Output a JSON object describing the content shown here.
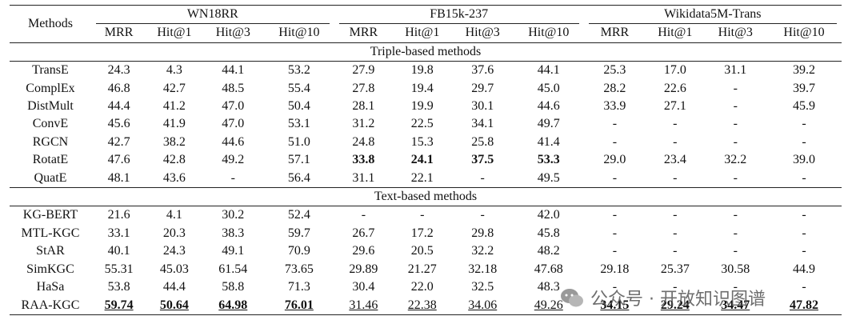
{
  "header": {
    "methods": "Methods",
    "groups": [
      "WN18RR",
      "FB15k-237",
      "Wikidata5M-Trans"
    ],
    "metrics": [
      "MRR",
      "Hit@1",
      "Hit@3",
      "Hit@10",
      "MRR",
      "Hit@1",
      "Hit@3",
      "Hit@10",
      "MRR",
      "Hit@1",
      "Hit@3",
      "Hit@10"
    ]
  },
  "sections": [
    {
      "title": "Triple-based methods",
      "rows": [
        {
          "cells": [
            "TransE",
            "24.3",
            "4.3",
            "44.1",
            "53.2",
            "27.9",
            "19.8",
            "37.6",
            "44.1",
            "25.3",
            "17.0",
            "31.1",
            "39.2"
          ]
        },
        {
          "cells": [
            "ComplEx",
            "46.8",
            "42.7",
            "48.5",
            "55.4",
            "27.8",
            "19.4",
            "29.7",
            "45.0",
            "28.2",
            "22.6",
            "-",
            "39.7"
          ]
        },
        {
          "cells": [
            "DistMult",
            "44.4",
            "41.2",
            "47.0",
            "50.4",
            "28.1",
            "19.9",
            "30.1",
            "44.6",
            "33.9",
            "27.1",
            "-",
            "45.9"
          ]
        },
        {
          "cells": [
            "ConvE",
            "45.6",
            "41.9",
            "47.0",
            "53.1",
            "31.2",
            "22.5",
            "34.1",
            "49.7",
            "-",
            "-",
            "-",
            "-"
          ]
        },
        {
          "cells": [
            "RGCN",
            "42.7",
            "38.2",
            "44.6",
            "51.0",
            "24.8",
            "15.3",
            "25.8",
            "41.4",
            "-",
            "-",
            "-",
            "-"
          ]
        },
        {
          "cells": [
            "RotatE",
            "47.6",
            "42.8",
            "49.2",
            "57.1",
            "33.8",
            "24.1",
            "37.5",
            "53.3",
            "29.0",
            "23.4",
            "32.2",
            "39.0"
          ],
          "bold": [
            5,
            6,
            7,
            8
          ]
        },
        {
          "cells": [
            "QuatE",
            "48.1",
            "43.6",
            "-",
            "56.4",
            "31.1",
            "22.1",
            "-",
            "49.5",
            "-",
            "-",
            "-",
            "-"
          ]
        }
      ]
    },
    {
      "title": "Text-based methods",
      "rows": [
        {
          "cells": [
            "KG-BERT",
            "21.6",
            "4.1",
            "30.2",
            "52.4",
            "-",
            "-",
            "-",
            "42.0",
            "-",
            "-",
            "-",
            "-"
          ]
        },
        {
          "cells": [
            "MTL-KGC",
            "33.1",
            "20.3",
            "38.3",
            "59.7",
            "26.7",
            "17.2",
            "29.8",
            "45.8",
            "-",
            "-",
            "-",
            "-"
          ]
        },
        {
          "cells": [
            "StAR",
            "40.1",
            "24.3",
            "49.1",
            "70.9",
            "29.6",
            "20.5",
            "32.2",
            "48.2",
            "-",
            "-",
            "-",
            "-"
          ]
        },
        {
          "cells": [
            "SimKGC",
            "55.31",
            "45.03",
            "61.54",
            "73.65",
            "29.89",
            "21.27",
            "32.18",
            "47.68",
            "29.18",
            "25.37",
            "30.58",
            "44.9"
          ]
        },
        {
          "cells": [
            "HaSa",
            "53.8",
            "44.4",
            "58.8",
            "71.3",
            "30.4",
            "22.0",
            "32.5",
            "48.3",
            "-",
            "-",
            "-",
            "-"
          ]
        },
        {
          "cells": [
            "RAA-KGC",
            "59.74",
            "50.64",
            "64.98",
            "76.01",
            "31.46",
            "22.38",
            "34.06",
            "49.26",
            "34.15",
            "29.24",
            "34.47",
            "47.82"
          ],
          "bold": [
            1,
            2,
            3,
            4,
            9,
            10,
            11,
            12
          ],
          "underline": [
            1,
            2,
            3,
            4,
            5,
            6,
            7,
            8,
            9,
            10,
            11,
            12
          ]
        }
      ]
    }
  ],
  "watermark": "公众号 · 开放知识图谱"
}
